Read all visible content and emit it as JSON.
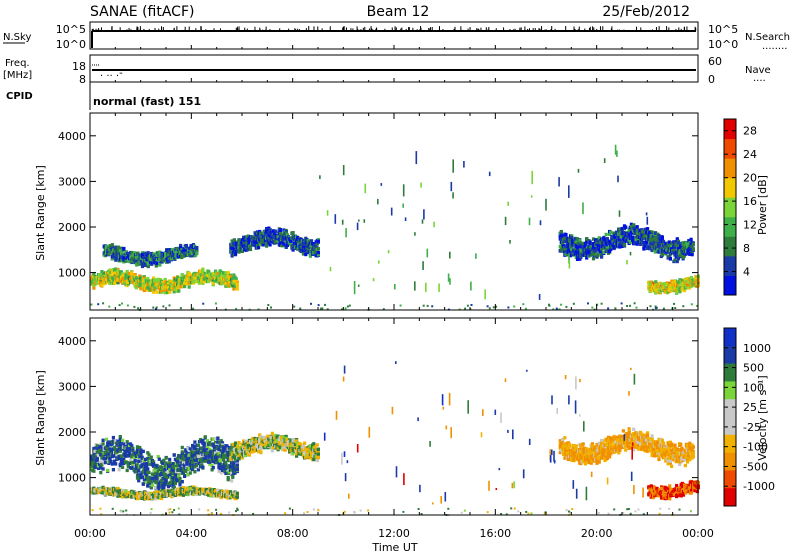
{
  "header": {
    "station": "SANAE (fitACF)",
    "beam": "Beam 12",
    "date": "25/Feb/2012"
  },
  "top_panels": {
    "nsky": {
      "label": "N.Sky",
      "right_label": "N.Search",
      "right_dots": "........",
      "ticks": [
        "10^5",
        "10^0"
      ],
      "right_ticks": [
        "10^5",
        "10^0"
      ]
    },
    "freq": {
      "label_1": "Freq.",
      "label_2": "[MHz]",
      "ticks": [
        "18",
        "8"
      ],
      "right_label": "Nave",
      "right_dots": "....",
      "right_ticks": [
        "60",
        "0"
      ]
    },
    "cpid": {
      "label": "CPID",
      "mode": "normal (fast) 151"
    }
  },
  "colors": {
    "power_scale": [
      "#0010e0",
      "#1a3aa8",
      "#2e7b3c",
      "#3faf4a",
      "#7ad43a",
      "#f2c800",
      "#f08f00",
      "#ef4a00",
      "#e00000"
    ],
    "velocity_scale": [
      "#e00000",
      "#ef4a00",
      "#f08f00",
      "#f2b100",
      "#c8c8c8",
      "#c8c8c8",
      "#7ad43a",
      "#2e7b3c",
      "#1a3aa8",
      "#1030c8"
    ]
  },
  "chart_data": [
    {
      "type": "heatmap",
      "title": "",
      "xlabel": "Time UT",
      "ylabel": "Slant Range [km]",
      "x_ticks": [
        "00:00",
        "04:00",
        "08:00",
        "12:00",
        "16:00",
        "20:00",
        "00:00"
      ],
      "y_ticks": [
        "1000",
        "2000",
        "3000",
        "4000"
      ],
      "ylim": [
        180,
        4500
      ],
      "xlim_hours": [
        0,
        24
      ],
      "colorbar": {
        "label": "Power [dB]",
        "ticks": [
          "4",
          "8",
          "12",
          "16",
          "20",
          "24",
          "28"
        ],
        "range": [
          0,
          30
        ]
      },
      "regions": [
        {
          "t": [
            0.0,
            5.8
          ],
          "r": [
            500,
            1100
          ],
          "value": 16
        },
        {
          "t": [
            0.5,
            4.2
          ],
          "r": [
            1100,
            1650
          ],
          "value": 6
        },
        {
          "t": [
            5.5,
            9.0
          ],
          "r": [
            1300,
            2000
          ],
          "value": 4
        },
        {
          "t": [
            18.5,
            23.8
          ],
          "r": [
            1200,
            2100
          ],
          "value": 4
        },
        {
          "t": [
            22.0,
            24.0
          ],
          "r": [
            500,
            1000
          ],
          "value": 18
        }
      ]
    },
    {
      "type": "heatmap",
      "title": "",
      "xlabel": "Time UT",
      "ylabel": "Slant Range [km]",
      "x_ticks": [
        "00:00",
        "04:00",
        "08:00",
        "12:00",
        "16:00",
        "20:00",
        "00:00"
      ],
      "y_ticks": [
        "1000",
        "2000",
        "3000",
        "4000"
      ],
      "ylim": [
        180,
        4500
      ],
      "xlim_hours": [
        0,
        24
      ],
      "colorbar": {
        "label": "Velocity [m s⁻¹]",
        "ticks": [
          "1000",
          "500",
          "100",
          "25",
          "-25",
          "-100",
          "-500",
          "-1000"
        ]
      },
      "regions": [
        {
          "t": [
            0.0,
            5.8
          ],
          "r": [
            600,
            2000
          ],
          "value": 100
        },
        {
          "t": [
            0.0,
            5.8
          ],
          "r": [
            500,
            800
          ],
          "value": 0
        },
        {
          "t": [
            5.5,
            9.0
          ],
          "r": [
            1300,
            2000
          ],
          "value": 0
        },
        {
          "t": [
            18.5,
            23.8
          ],
          "r": [
            1200,
            2100
          ],
          "value": -100
        },
        {
          "t": [
            22.0,
            24.0
          ],
          "r": [
            500,
            1000
          ],
          "value": -500
        }
      ]
    }
  ]
}
